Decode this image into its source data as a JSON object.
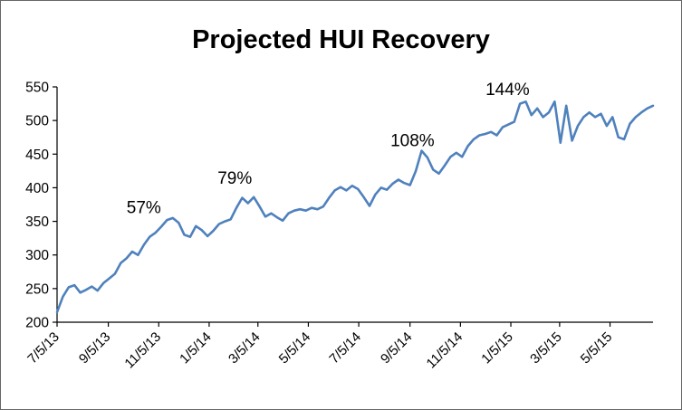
{
  "chart_data": {
    "type": "line",
    "title": "Projected HUI Recovery",
    "grid": false,
    "legend": "none",
    "background": "#FFFFFF",
    "axis_color": "#000000",
    "text_color": "#000000",
    "ylim": [
      200,
      550
    ],
    "y_ticks": [
      200,
      250,
      300,
      350,
      400,
      450,
      500,
      550
    ],
    "x_total_days": 721,
    "x_step_days": 7,
    "x_ticks": [
      {
        "label": "7/5/13",
        "day": 0
      },
      {
        "label": "9/5/13",
        "day": 62
      },
      {
        "label": "11/5/13",
        "day": 123
      },
      {
        "label": "1/5/14",
        "day": 184
      },
      {
        "label": "3/5/14",
        "day": 243
      },
      {
        "label": "5/5/14",
        "day": 304
      },
      {
        "label": "7/5/14",
        "day": 365
      },
      {
        "label": "9/5/14",
        "day": 427
      },
      {
        "label": "11/5/14",
        "day": 488
      },
      {
        "label": "1/5/15",
        "day": 549
      },
      {
        "label": "3/5/15",
        "day": 608
      },
      {
        "label": "5/5/15",
        "day": 669
      }
    ],
    "series": [
      {
        "color": "#4F81BD",
        "stroke_width": 2.6,
        "values": [
          215,
          238,
          252,
          255,
          244,
          248,
          253,
          247,
          258,
          265,
          272,
          288,
          295,
          305,
          300,
          315,
          327,
          333,
          342,
          352,
          355,
          348,
          330,
          327,
          343,
          337,
          328,
          336,
          346,
          350,
          353,
          370,
          385,
          377,
          386,
          372,
          357,
          362,
          356,
          351,
          362,
          366,
          368,
          366,
          370,
          368,
          372,
          385,
          396,
          401,
          396,
          403,
          398,
          386,
          373,
          390,
          400,
          397,
          406,
          412,
          407,
          404,
          425,
          455,
          445,
          427,
          421,
          433,
          446,
          452,
          446,
          462,
          472,
          478,
          480,
          483,
          478,
          490,
          494,
          498,
          525,
          528,
          508,
          518,
          505,
          512,
          528,
          467,
          522,
          470,
          492,
          505,
          512,
          505,
          510,
          492,
          505,
          475,
          472,
          495,
          505,
          512,
          518,
          522
        ]
      }
    ],
    "annotations": [
      {
        "text": "57%",
        "day": 105,
        "value": 370
      },
      {
        "text": "79%",
        "day": 215,
        "value": 414
      },
      {
        "text": "108%",
        "day": 430,
        "value": 470
      },
      {
        "text": "144%",
        "day": 545,
        "value": 546
      }
    ]
  }
}
